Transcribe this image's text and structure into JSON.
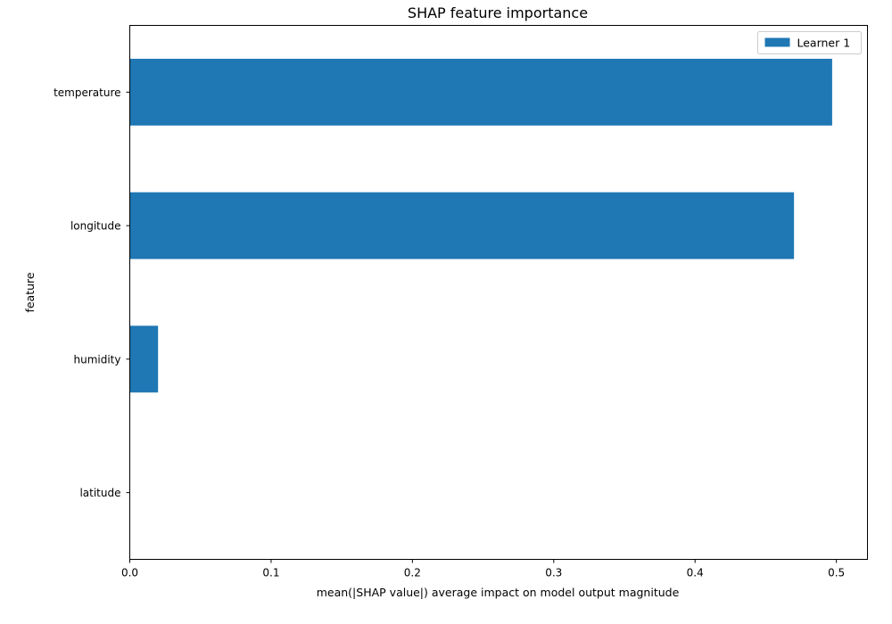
{
  "chart_data": {
    "type": "bar",
    "orientation": "horizontal",
    "title": "SHAP feature importance",
    "xlabel": "mean(|SHAP value|) average impact on model output magnitude",
    "ylabel": "feature",
    "categories": [
      "temperature",
      "longitude",
      "humidity",
      "latitude"
    ],
    "series": [
      {
        "name": "Learner 1",
        "values": [
          0.497,
          0.47,
          0.02,
          0.0
        ],
        "color": "#1f77b4"
      }
    ],
    "xlim": [
      0,
      0.522
    ],
    "xticks": [
      {
        "value": 0.0,
        "label": "0.0"
      },
      {
        "value": 0.1,
        "label": "0.1"
      },
      {
        "value": 0.2,
        "label": "0.2"
      },
      {
        "value": 0.3,
        "label": "0.3"
      },
      {
        "value": 0.4,
        "label": "0.4"
      },
      {
        "value": 0.5,
        "label": "0.5"
      }
    ],
    "grid": false,
    "legend_position": "top-right"
  }
}
